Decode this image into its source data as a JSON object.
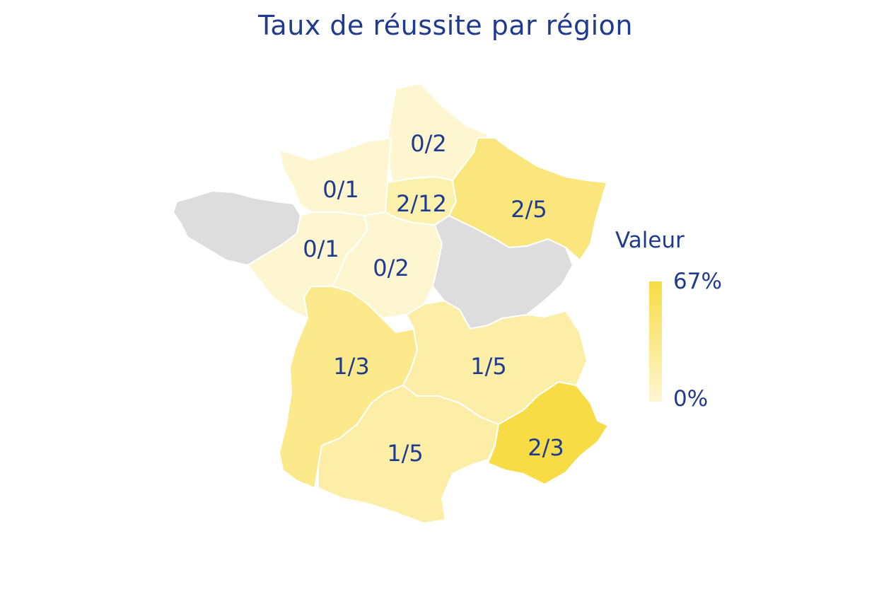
{
  "title": "Taux de réussite par région",
  "legend": {
    "title": "Valeur",
    "max_label": "67%",
    "min_label": "0%",
    "color_low": "#fdf6d0",
    "color_high": "#f8dc45"
  },
  "colors": {
    "no_data": "#dddddd",
    "text": "#1f3a8f"
  },
  "regions": [
    {
      "id": "bretagne",
      "label": "",
      "value": null
    },
    {
      "id": "hauts-de-france",
      "label": "0/2",
      "value": 0
    },
    {
      "id": "normandie",
      "label": "0/1",
      "value": 0
    },
    {
      "id": "ile-de-france",
      "label": "2/12",
      "value": 0.167
    },
    {
      "id": "grand-est",
      "label": "2/5",
      "value": 0.4
    },
    {
      "id": "pays-de-la-loire",
      "label": "0/1",
      "value": 0
    },
    {
      "id": "centre-val-de-loire",
      "label": "0/2",
      "value": 0
    },
    {
      "id": "bourgogne-franche-comte",
      "label": "",
      "value": null
    },
    {
      "id": "nouvelle-aquitaine",
      "label": "1/3",
      "value": 0.333
    },
    {
      "id": "auvergne-rhone-alpes",
      "label": "1/5",
      "value": 0.2
    },
    {
      "id": "occitanie",
      "label": "1/5",
      "value": 0.2
    },
    {
      "id": "provence-alpes-cote-dazur",
      "label": "2/3",
      "value": 0.667
    }
  ],
  "chart_data": {
    "type": "choropleth",
    "title": "Taux de réussite par région",
    "legend_title": "Valeur",
    "scale": {
      "min": 0,
      "max": 0.67,
      "min_label": "0%",
      "max_label": "67%"
    },
    "legend_placement": "right",
    "entries": [
      {
        "label": "0/2",
        "value": 0
      },
      {
        "label": "0/1",
        "value": 0
      },
      {
        "label": "2/12",
        "value": 0.167
      },
      {
        "label": "2/5",
        "value": 0.4
      },
      {
        "label": "0/1",
        "value": 0
      },
      {
        "label": "0/2",
        "value": 0
      },
      {
        "label": "1/3",
        "value": 0.333
      },
      {
        "label": "1/5",
        "value": 0.2
      },
      {
        "label": "1/5",
        "value": 0.2
      },
      {
        "label": "2/3",
        "value": 0.667
      }
    ]
  }
}
